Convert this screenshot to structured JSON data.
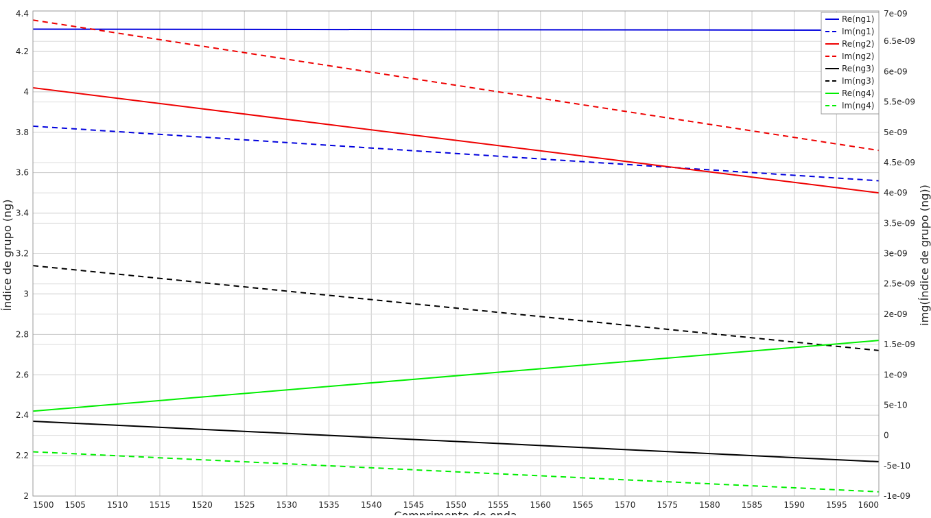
{
  "chart_data": {
    "type": "line",
    "xlabel": "Comprimento de onda",
    "ylabel_left": "Índice de grupo (ng)",
    "ylabel_right": "img(Índice de grupo (ng))",
    "xlim": [
      1500,
      1600
    ],
    "ylim_left": [
      2.0,
      4.4
    ],
    "ylim_right": [
      -1e-09,
      7e-09
    ],
    "x_ticks": [
      "1500",
      "1505",
      "1510",
      "1515",
      "1520",
      "1525",
      "1530",
      "1535",
      "1540",
      "1545",
      "1550",
      "1555",
      "1560",
      "1565",
      "1570",
      "1575",
      "1580",
      "1585",
      "1590",
      "1595",
      "1600"
    ],
    "y_left_ticks": [
      "2",
      "2.2",
      "2.4",
      "2.6",
      "2.8",
      "3",
      "3.2",
      "3.4",
      "3.6",
      "3.8",
      "4",
      "4.2",
      "4.4"
    ],
    "y_right_ticks": [
      "-1e-09",
      "-5e-10",
      "0",
      "5e-10",
      "1e-09",
      "1.5e-09",
      "2e-09",
      "2.5e-09",
      "3e-09",
      "3.5e-09",
      "4e-09",
      "4.5e-09",
      "5e-09",
      "5.5e-09",
      "6e-09",
      "6.5e-09",
      "7e-09"
    ],
    "grid": true,
    "legend_position": "top-right",
    "series": [
      {
        "name": "Re(ng1)",
        "axis": "left",
        "color": "#0000dd",
        "dash": false,
        "x": [
          1500,
          1600
        ],
        "y": [
          4.31,
          4.305
        ]
      },
      {
        "name": "Im(ng1)",
        "axis": "right",
        "color": "#0000dd",
        "dash": true,
        "x": [
          1500,
          1600
        ],
        "y": [
          5.1e-09,
          4.2e-09
        ]
      },
      {
        "name": "Re(ng2)",
        "axis": "left",
        "color": "#ee0000",
        "dash": false,
        "x": [
          1500,
          1600
        ],
        "y": [
          4.02,
          3.5
        ]
      },
      {
        "name": "Im(ng2)",
        "axis": "right",
        "color": "#ee0000",
        "dash": true,
        "x": [
          1500,
          1600
        ],
        "y": [
          6.85e-09,
          4.7e-09
        ]
      },
      {
        "name": "Re(ng3)",
        "axis": "left",
        "color": "#000000",
        "dash": false,
        "x": [
          1500,
          1600
        ],
        "y": [
          2.37,
          2.17
        ]
      },
      {
        "name": "Im(ng3)",
        "axis": "right",
        "color": "#000000",
        "dash": true,
        "x": [
          1500,
          1600
        ],
        "y": [
          2.8e-09,
          1.4e-09
        ]
      },
      {
        "name": "Re(ng4)",
        "axis": "left",
        "color": "#00ee00",
        "dash": false,
        "x": [
          1500,
          1600
        ],
        "y": [
          2.42,
          2.77
        ]
      },
      {
        "name": "Im(ng4)",
        "axis": "right",
        "color": "#00ee00",
        "dash": true,
        "x": [
          1500,
          1600
        ],
        "y": [
          -2.7e-10,
          -9.3e-10
        ]
      }
    ]
  }
}
